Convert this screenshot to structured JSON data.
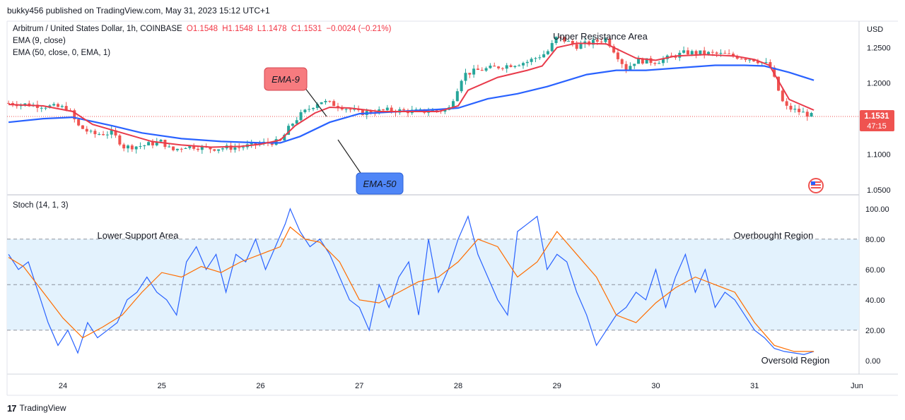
{
  "header": {
    "published": "bukky456 published on TradingView.com, May 31, 2023 15:12 UTC+1"
  },
  "legend": {
    "symbol": "Arbitrum / United States Dollar, 1h, COINBASE",
    "open": "O1.1548",
    "high": "H1.1548",
    "low": "L1.1478",
    "close": "C1.1531",
    "change": "−0.0024 (−0.21%)",
    "ema9": "EMA (9, close)",
    "ema50": "EMA (50, close, 0, EMA, 1)",
    "stoch": "Stoch (14, 1, 3)"
  },
  "price_axis": {
    "currency": "USD",
    "last_price": "1.1531",
    "countdown": "47:15"
  },
  "annotations": {
    "upper_resistance": "Upper Resistance Area",
    "ema9_callout": "EMA-9",
    "ema50_callout": "EMA-50",
    "lower_support": "Lower Support Area",
    "overbought": "Overbought Region",
    "oversold": "Oversold Region"
  },
  "footer": {
    "brand": "TradingView",
    "logo_mark": "17"
  },
  "colors": {
    "up": "#26a69a",
    "down": "#ef5350",
    "ema9": "#e83a4a",
    "ema50": "#2962ff",
    "stoch_k": "#2962ff",
    "stoch_d": "#ff6d00",
    "band": "#e3f2fd",
    "callout_red": "#f77b7f",
    "callout_blue": "#4f86f7"
  },
  "chart_data": [
    {
      "type": "candlestick",
      "title": "Arbitrum / United States Dollar, 1h, COINBASE",
      "ylabel": "USD",
      "ylim": [
        1.045,
        1.285
      ],
      "yticks": [
        1.05,
        1.1,
        1.15,
        1.2,
        1.25
      ],
      "ytick_labels": [
        "1.0500",
        "1.1000",
        "1.1500",
        "1.2000",
        "1.2500"
      ],
      "xticks": [
        24,
        25,
        26,
        27,
        28,
        29,
        30,
        31,
        32
      ],
      "xtick_labels": [
        "24",
        "25",
        "26",
        "27",
        "28",
        "29",
        "30",
        "31",
        "Jun"
      ],
      "x_unit": "day of May 2023 (fractional)",
      "price_anchors": {
        "x": [
          23.45,
          23.8,
          24.05,
          24.15,
          24.3,
          24.5,
          24.62,
          24.8,
          25.0,
          25.1,
          25.25,
          25.5,
          25.8,
          26.0,
          26.2,
          26.3,
          26.4,
          26.6,
          26.8,
          27.0,
          27.3,
          27.6,
          27.9,
          28.05,
          28.2,
          28.5,
          28.7,
          28.9,
          29.0,
          29.2,
          29.5,
          29.7,
          29.8,
          30.0,
          30.3,
          30.5,
          30.7,
          31.0,
          31.15,
          31.3,
          31.6
        ],
        "y": [
          1.172,
          1.168,
          1.165,
          1.14,
          1.128,
          1.13,
          1.11,
          1.112,
          1.118,
          1.105,
          1.112,
          1.108,
          1.11,
          1.115,
          1.118,
          1.14,
          1.155,
          1.175,
          1.168,
          1.158,
          1.162,
          1.16,
          1.162,
          1.212,
          1.218,
          1.225,
          1.23,
          1.243,
          1.265,
          1.252,
          1.262,
          1.22,
          1.232,
          1.23,
          1.243,
          1.242,
          1.24,
          1.233,
          1.225,
          1.167,
          1.153
        ]
      },
      "series": [
        {
          "name": "EMA (9, close)",
          "x": [
            23.45,
            23.8,
            24.1,
            24.3,
            24.6,
            24.9,
            25.2,
            25.5,
            25.8,
            26.0,
            26.2,
            26.35,
            26.55,
            26.7,
            26.9,
            27.2,
            27.5,
            27.8,
            28.0,
            28.1,
            28.4,
            28.7,
            28.85,
            29.0,
            29.2,
            29.5,
            29.8,
            30.0,
            30.2,
            30.5,
            30.8,
            31.0,
            31.15,
            31.35,
            31.6
          ],
          "values": [
            1.17,
            1.168,
            1.16,
            1.142,
            1.13,
            1.118,
            1.113,
            1.11,
            1.111,
            1.114,
            1.12,
            1.14,
            1.158,
            1.166,
            1.165,
            1.16,
            1.16,
            1.16,
            1.168,
            1.19,
            1.208,
            1.218,
            1.224,
            1.25,
            1.256,
            1.255,
            1.235,
            1.232,
            1.238,
            1.24,
            1.238,
            1.233,
            1.225,
            1.177,
            1.162
          ]
        },
        {
          "name": "EMA (50, close, 0, EMA, 1)",
          "x": [
            23.45,
            23.8,
            24.1,
            24.5,
            24.8,
            25.2,
            25.6,
            26.0,
            26.2,
            26.4,
            26.7,
            27.0,
            27.4,
            27.8,
            28.0,
            28.3,
            28.6,
            28.9,
            29.3,
            29.6,
            29.9,
            30.3,
            30.6,
            30.9,
            31.1,
            31.35,
            31.6
          ],
          "values": [
            1.145,
            1.15,
            1.152,
            1.14,
            1.13,
            1.122,
            1.118,
            1.116,
            1.116,
            1.125,
            1.145,
            1.157,
            1.16,
            1.163,
            1.165,
            1.178,
            1.185,
            1.195,
            1.212,
            1.218,
            1.218,
            1.222,
            1.225,
            1.225,
            1.224,
            1.215,
            1.204
          ]
        }
      ]
    },
    {
      "type": "line",
      "title": "Stoch (14, 1, 3)",
      "ylim": [
        -8,
        105
      ],
      "yticks": [
        0,
        20,
        40,
        60,
        80,
        100
      ],
      "ytick_labels": [
        "0.00",
        "20.00",
        "40.00",
        "60.00",
        "80.00",
        "100.00"
      ],
      "bands": {
        "overbought": 80,
        "middle": 50,
        "oversold": 20
      },
      "xticks": [
        24,
        25,
        26,
        27,
        28,
        29,
        30,
        31,
        32
      ],
      "xtick_labels": [
        "24",
        "25",
        "26",
        "27",
        "28",
        "29",
        "30",
        "31",
        "Jun"
      ],
      "k_anchors": {
        "x": [
          23.45,
          23.55,
          23.65,
          23.75,
          23.85,
          23.95,
          24.05,
          24.15,
          24.25,
          24.35,
          24.45,
          24.55,
          24.65,
          24.75,
          24.85,
          24.95,
          25.05,
          25.15,
          25.25,
          25.35,
          25.45,
          25.55,
          25.65,
          25.75,
          25.85,
          25.95,
          26.05,
          26.15,
          26.25,
          26.3,
          26.4,
          26.5,
          26.6,
          26.7,
          26.8,
          26.9,
          27.0,
          27.1,
          27.2,
          27.3,
          27.4,
          27.5,
          27.6,
          27.7,
          27.8,
          27.9,
          28.0,
          28.1,
          28.2,
          28.3,
          28.4,
          28.5,
          28.6,
          28.7,
          28.8,
          28.9,
          29.0,
          29.1,
          29.2,
          29.3,
          29.4,
          29.5,
          29.6,
          29.7,
          29.8,
          29.9,
          30.0,
          30.1,
          30.2,
          30.3,
          30.4,
          30.5,
          30.6,
          30.7,
          30.8,
          30.9,
          31.0,
          31.1,
          31.2,
          31.3,
          31.4,
          31.5,
          31.6
        ],
        "y": [
          70,
          60,
          65,
          45,
          25,
          10,
          20,
          5,
          25,
          15,
          20,
          25,
          40,
          45,
          55,
          45,
          40,
          30,
          65,
          75,
          60,
          70,
          45,
          70,
          65,
          80,
          60,
          75,
          90,
          100,
          85,
          75,
          80,
          70,
          55,
          40,
          35,
          20,
          50,
          35,
          55,
          65,
          30,
          80,
          45,
          60,
          80,
          95,
          70,
          55,
          40,
          30,
          85,
          90,
          95,
          60,
          70,
          65,
          45,
          30,
          10,
          20,
          30,
          35,
          45,
          40,
          60,
          35,
          55,
          70,
          45,
          60,
          35,
          45,
          40,
          30,
          20,
          15,
          8,
          6,
          5,
          4,
          6
        ]
      },
      "d_anchors": {
        "x": [
          23.45,
          23.6,
          23.8,
          24.0,
          24.2,
          24.4,
          24.6,
          24.8,
          25.0,
          25.2,
          25.4,
          25.6,
          25.8,
          26.0,
          26.2,
          26.3,
          26.45,
          26.6,
          26.8,
          27.0,
          27.2,
          27.4,
          27.6,
          27.8,
          28.0,
          28.2,
          28.4,
          28.6,
          28.8,
          29.0,
          29.2,
          29.4,
          29.6,
          29.8,
          30.0,
          30.2,
          30.4,
          30.6,
          30.8,
          31.0,
          31.2,
          31.4,
          31.6
        ],
        "y": [
          68,
          62,
          45,
          28,
          15,
          22,
          30,
          45,
          58,
          55,
          62,
          58,
          65,
          70,
          75,
          88,
          80,
          78,
          65,
          40,
          38,
          45,
          52,
          55,
          65,
          80,
          75,
          55,
          65,
          85,
          70,
          55,
          30,
          25,
          38,
          48,
          55,
          50,
          45,
          25,
          10,
          6,
          6
        ]
      }
    }
  ]
}
